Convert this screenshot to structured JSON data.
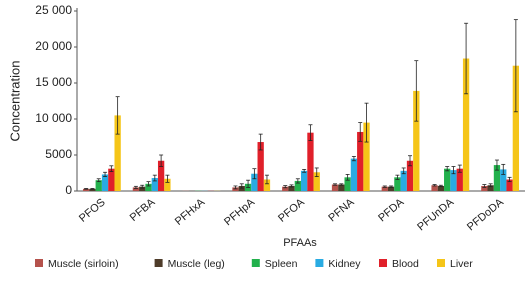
{
  "chart_data": {
    "type": "bar",
    "y_label": "Concentration",
    "x_label": "PFAAs",
    "categories": [
      "PFOS",
      "PFBA",
      "PFHxA",
      "PFHpA",
      "PFOA",
      "PFNA",
      "PFDA",
      "PFUnDA",
      "PFDoDA"
    ],
    "series": [
      {
        "name": "Muscle (sirloin)",
        "color": "#b5524c",
        "values": [
          300,
          500,
          20,
          500,
          600,
          900,
          600,
          800,
          700
        ],
        "errors": [
          50,
          150,
          0,
          200,
          150,
          100,
          100,
          100,
          200
        ]
      },
      {
        "name": "Muscle (leg)",
        "color": "#4e3c2a",
        "values": [
          300,
          600,
          20,
          700,
          700,
          900,
          600,
          700,
          800
        ],
        "errors": [
          50,
          200,
          0,
          300,
          150,
          100,
          100,
          100,
          200
        ]
      },
      {
        "name": "Spleen",
        "color": "#22b14c",
        "values": [
          1500,
          1000,
          30,
          1000,
          1400,
          1900,
          1900,
          3100,
          3600
        ],
        "errors": [
          200,
          300,
          0,
          500,
          300,
          400,
          300,
          300,
          700
        ]
      },
      {
        "name": "Kidney",
        "color": "#29abe2",
        "values": [
          2300,
          1800,
          20,
          2400,
          2800,
          4500,
          2800,
          2900,
          3000
        ],
        "errors": [
          300,
          400,
          0,
          700,
          200,
          300,
          400,
          500,
          700
        ]
      },
      {
        "name": "Blood",
        "color": "#e0202a",
        "values": [
          3100,
          4200,
          20,
          6800,
          8100,
          8200,
          4200,
          3100,
          1600
        ],
        "errors": [
          400,
          800,
          0,
          1100,
          1100,
          1300,
          700,
          500,
          300
        ]
      },
      {
        "name": "Liver",
        "color": "#f5c518",
        "values": [
          10500,
          1700,
          20,
          1600,
          2600,
          9500,
          13900,
          18400,
          17400
        ],
        "errors": [
          2600,
          500,
          0,
          600,
          600,
          2700,
          4200,
          4900,
          6400
        ]
      }
    ],
    "ylim": [
      0,
      25000
    ],
    "yticks": [
      0,
      5000,
      {
        "value": 10000,
        "label": "10 000"
      },
      {
        "value": 15000,
        "label": "15 000"
      },
      {
        "value": 20000,
        "label": "20 000"
      },
      {
        "value": 25000,
        "label": "25 000"
      }
    ]
  }
}
